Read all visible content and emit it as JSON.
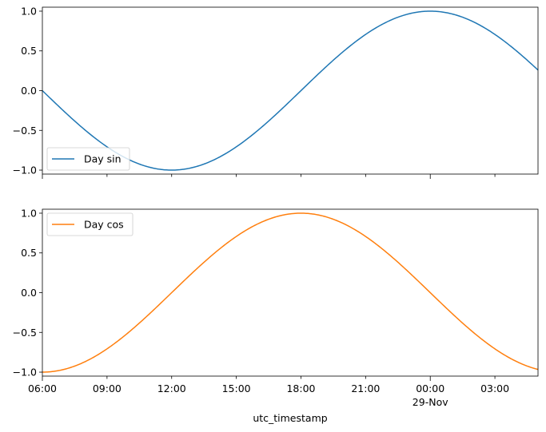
{
  "chart_data": [
    {
      "type": "line",
      "series": [
        {
          "name": "Day sin",
          "color": "#1f77b4",
          "function": "cos",
          "phase_hours": 6
        }
      ],
      "x_range": [
        "06:00",
        "05:00"
      ],
      "ylim": [
        -1.05,
        1.05
      ],
      "y_ticks": [
        "1.0",
        "0.5",
        "0.0",
        "−0.5",
        "−1.0"
      ],
      "y_tick_values": [
        1.0,
        0.5,
        0.0,
        -0.5,
        -1.0
      ],
      "legend_position": "lower-left",
      "xlabel": ""
    },
    {
      "type": "line",
      "series": [
        {
          "name": "Day cos",
          "color": "#ff7f0e",
          "function": "-sin",
          "phase_hours": 6
        }
      ],
      "x_range": [
        "06:00",
        "05:00"
      ],
      "ylim": [
        -1.05,
        1.05
      ],
      "y_ticks": [
        "1.0",
        "0.5",
        "0.0",
        "−0.5",
        "−1.0"
      ],
      "y_tick_values": [
        1.0,
        0.5,
        0.0,
        -0.5,
        -1.0
      ],
      "legend_position": "upper-left",
      "xlabel": "utc_timestamp"
    }
  ],
  "x_axis": {
    "tick_hours": [
      0,
      3,
      6,
      9,
      12,
      15,
      18,
      21
    ],
    "tick_labels": [
      "06:00",
      "09:00",
      "12:00",
      "15:00",
      "18:00",
      "21:00",
      "00:00",
      "03:00"
    ],
    "secondary_label": "29-Nov",
    "span_hours": 23
  }
}
